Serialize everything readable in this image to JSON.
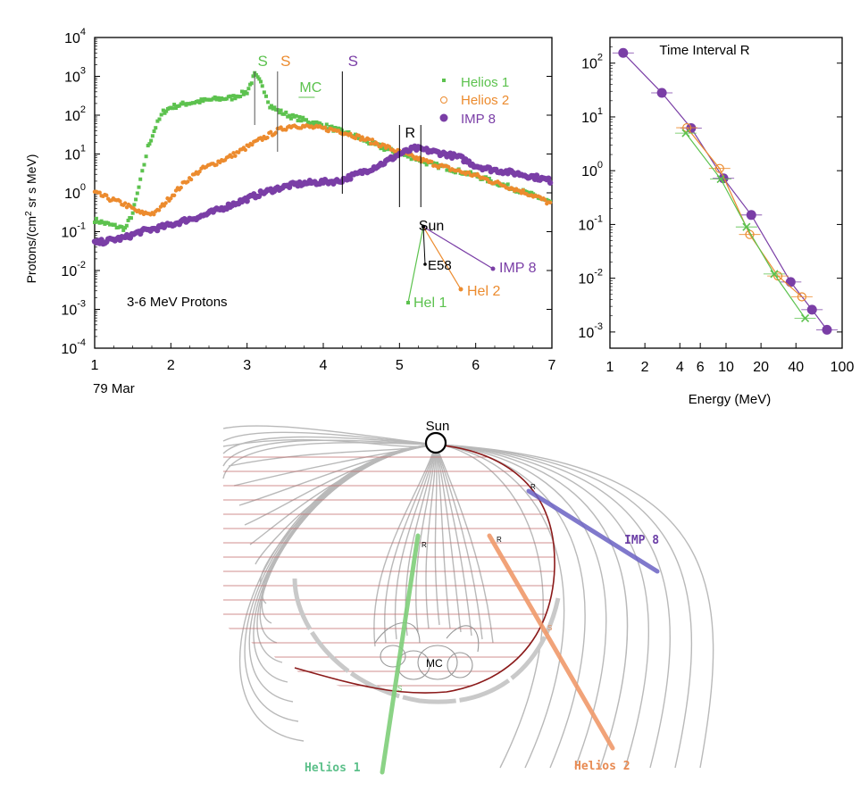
{
  "chart_data": [
    {
      "type": "scatter",
      "name": "time-profile",
      "ylabel": "Protons/(cm2 sr s MeV)",
      "yscale": "log",
      "ylim": [
        0.0001,
        10000
      ],
      "xlim": [
        1,
        7
      ],
      "x_ticks": [
        "1",
        "2",
        "3",
        "4",
        "5",
        "6",
        "7"
      ],
      "x_sublabel": "79 Mar",
      "y_ticks": [
        {
          "base": "10",
          "exp": "4"
        },
        {
          "base": "10",
          "exp": "3"
        },
        {
          "base": "10",
          "exp": "2"
        },
        {
          "base": "10",
          "exp": "1"
        },
        {
          "base": "10",
          "exp": "0"
        },
        {
          "base": "10",
          "exp": "-1"
        },
        {
          "base": "10",
          "exp": "-2"
        },
        {
          "base": "10",
          "exp": "-3"
        },
        {
          "base": "10",
          "exp": "-4"
        }
      ],
      "annotation": "3-6 MeV Protons",
      "legend": [
        {
          "label": "Helios 1",
          "color": "#5cc24e"
        },
        {
          "label": "Helios 2",
          "color": "#ec8b2e"
        },
        {
          "label": "IMP 8",
          "color": "#7a3ea6"
        }
      ],
      "markers": [
        {
          "label": "S",
          "x": 3.1,
          "color": "#5cc24e"
        },
        {
          "label": "S",
          "x": 3.4,
          "color": "#ec8b2e"
        },
        {
          "label": "S",
          "x": 4.25,
          "color": "#7a3ea6"
        },
        {
          "label": "R",
          "x": 5.0,
          "color": "#000000"
        },
        {
          "label": "MC",
          "x": 3.7,
          "color": "#5cc24e"
        }
      ],
      "series": [
        {
          "name": "Helios 1",
          "color": "#5cc24e",
          "x": [
            1.0,
            1.2,
            1.4,
            1.5,
            1.6,
            1.7,
            1.8,
            1.9,
            2.0,
            2.2,
            2.4,
            2.6,
            2.8,
            3.0,
            3.1,
            3.2,
            3.3,
            3.4,
            3.6,
            3.8,
            4.0,
            4.2,
            4.4,
            4.6,
            4.8,
            5.0,
            5.2,
            5.4,
            5.6,
            5.8,
            6.0,
            6.2,
            6.4,
            6.6,
            6.8,
            7.0
          ],
          "y": [
            0.2,
            0.15,
            0.12,
            0.3,
            2,
            15,
            50,
            120,
            160,
            200,
            230,
            260,
            280,
            400,
            1100,
            600,
            180,
            130,
            90,
            70,
            55,
            40,
            30,
            20,
            14,
            10,
            8,
            5.5,
            4.5,
            3.5,
            2.8,
            2,
            1.5,
            1.1,
            0.8,
            0.55
          ]
        },
        {
          "name": "Helios 2",
          "color": "#ec8b2e",
          "x": [
            1.0,
            1.2,
            1.4,
            1.6,
            1.8,
            2.0,
            2.2,
            2.4,
            2.6,
            2.8,
            3.0,
            3.2,
            3.4,
            3.6,
            3.8,
            4.0,
            4.2,
            4.4,
            4.6,
            4.8,
            5.0,
            5.2,
            5.4,
            5.6,
            5.8,
            6.0,
            6.2,
            6.4,
            6.6,
            6.8,
            7.0
          ],
          "y": [
            1,
            0.7,
            0.5,
            0.3,
            0.3,
            0.8,
            2,
            4,
            6,
            9,
            15,
            25,
            40,
            55,
            50,
            45,
            40,
            30,
            22,
            16,
            11,
            8,
            6,
            4.5,
            3.5,
            2.8,
            2,
            1.5,
            1.1,
            0.8,
            0.5
          ]
        },
        {
          "name": "IMP 8",
          "color": "#7a3ea6",
          "x": [
            1.0,
            1.2,
            1.4,
            1.6,
            1.8,
            2.0,
            2.2,
            2.4,
            2.6,
            2.8,
            3.0,
            3.2,
            3.4,
            3.6,
            3.8,
            4.0,
            4.2,
            4.4,
            4.6,
            4.8,
            5.0,
            5.2,
            5.4,
            5.6,
            5.8,
            6.0,
            6.2,
            6.4,
            6.6,
            6.8,
            7.0
          ],
          "y": [
            0.05,
            0.06,
            0.07,
            0.1,
            0.12,
            0.15,
            0.2,
            0.25,
            0.35,
            0.5,
            0.7,
            1.0,
            1.3,
            1.6,
            1.8,
            1.9,
            2.0,
            2.8,
            4,
            6,
            10,
            14,
            12,
            10,
            8,
            5,
            4,
            3.5,
            3,
            2.5,
            2
          ]
        }
      ],
      "inset": {
        "sun_label": "Sun",
        "spacecraft": [
          {
            "label": "E58",
            "color": "#000000"
          },
          {
            "label": "IMP 8",
            "color": "#7a3ea6"
          },
          {
            "label": "Hel 2",
            "color": "#ec8b2e"
          },
          {
            "label": "Hel 1",
            "color": "#5cc24e"
          }
        ]
      }
    },
    {
      "type": "scatter",
      "name": "energy-spectrum",
      "title": "Time Interval R",
      "xlabel": "Energy (MeV)",
      "xscale": "log",
      "yscale": "log",
      "xlim": [
        1,
        100
      ],
      "ylim": [
        0.0005,
        300
      ],
      "x_ticks": [
        "1",
        "2",
        "4",
        "6",
        "10",
        "20",
        "40",
        "100"
      ],
      "x_tick_values": [
        1,
        2,
        4,
        6,
        10,
        20,
        40,
        100
      ],
      "y_ticks": [
        {
          "base": "10",
          "exp": "2"
        },
        {
          "base": "10",
          "exp": "1"
        },
        {
          "base": "10",
          "exp": "0"
        },
        {
          "base": "10",
          "exp": "-1"
        },
        {
          "base": "10",
          "exp": "-2"
        },
        {
          "base": "10",
          "exp": "-3"
        }
      ],
      "series": [
        {
          "color": "#7a3ea6",
          "x": [
            1.3,
            2.8,
            5.0,
            9.5,
            16.5,
            36,
            55,
            74
          ],
          "y": [
            155,
            28,
            6.2,
            0.72,
            0.15,
            0.0085,
            0.0026,
            0.0011
          ]
        },
        {
          "color": "#ec8b2e",
          "x": [
            4.6,
            8.8,
            16,
            28,
            45
          ],
          "y": [
            6.3,
            1.1,
            0.065,
            0.011,
            0.0045
          ]
        },
        {
          "color": "#5cc24e",
          "x": [
            4.5,
            9.0,
            15,
            26,
            48
          ],
          "y": [
            5.0,
            0.7,
            0.09,
            0.012,
            0.0018
          ]
        }
      ]
    },
    {
      "type": "diagram",
      "name": "field-diagram",
      "sun_label": "Sun",
      "mc_label": "MC",
      "spacecraft": [
        {
          "label": "IMP 8",
          "color": "#6b62c4",
          "point": "R"
        },
        {
          "label": "Helios 1",
          "color": "#7fcf7a",
          "points": [
            "R",
            "S"
          ]
        },
        {
          "label": "Helios 2",
          "color": "#f09a6b",
          "points": [
            "R",
            "S"
          ]
        }
      ]
    }
  ]
}
